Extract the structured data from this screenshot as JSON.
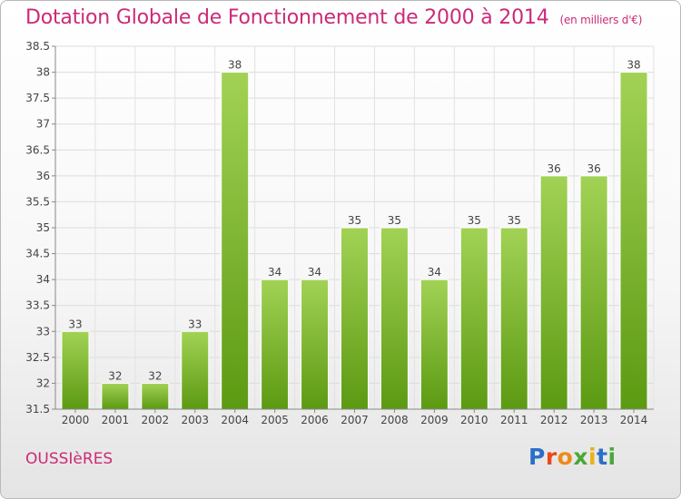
{
  "title": "Dotation Globale de Fonctionnement de 2000 à 2014",
  "subtitle": "(en milliers d'€)",
  "commune": "OUSSIèRES",
  "logo": {
    "text": "Proxiti",
    "colors": [
      "#2a6fc9",
      "#e84a1c",
      "#ee8a1a",
      "#49a838",
      "#e9b313",
      "#2a6fc9",
      "#49a838"
    ]
  },
  "colors": {
    "title": "#cc2a77",
    "bar_light": "#a2d255",
    "bar_dark": "#5c9a12"
  },
  "chart_data": {
    "type": "bar",
    "categories": [
      "2000",
      "2001",
      "2002",
      "2003",
      "2004",
      "2005",
      "2006",
      "2007",
      "2008",
      "2009",
      "2010",
      "2011",
      "2012",
      "2013",
      "2014"
    ],
    "values": [
      33,
      32,
      32,
      33,
      38,
      34,
      34,
      35,
      35,
      34,
      35,
      35,
      36,
      36,
      38
    ],
    "ylim": [
      31.5,
      38.5
    ],
    "yticks": [
      "31.5",
      "32",
      "32.5",
      "33",
      "33.5",
      "34",
      "34.5",
      "35",
      "35.5",
      "36",
      "36.5",
      "37",
      "37.5",
      "38",
      "38.5"
    ],
    "grid": true
  }
}
